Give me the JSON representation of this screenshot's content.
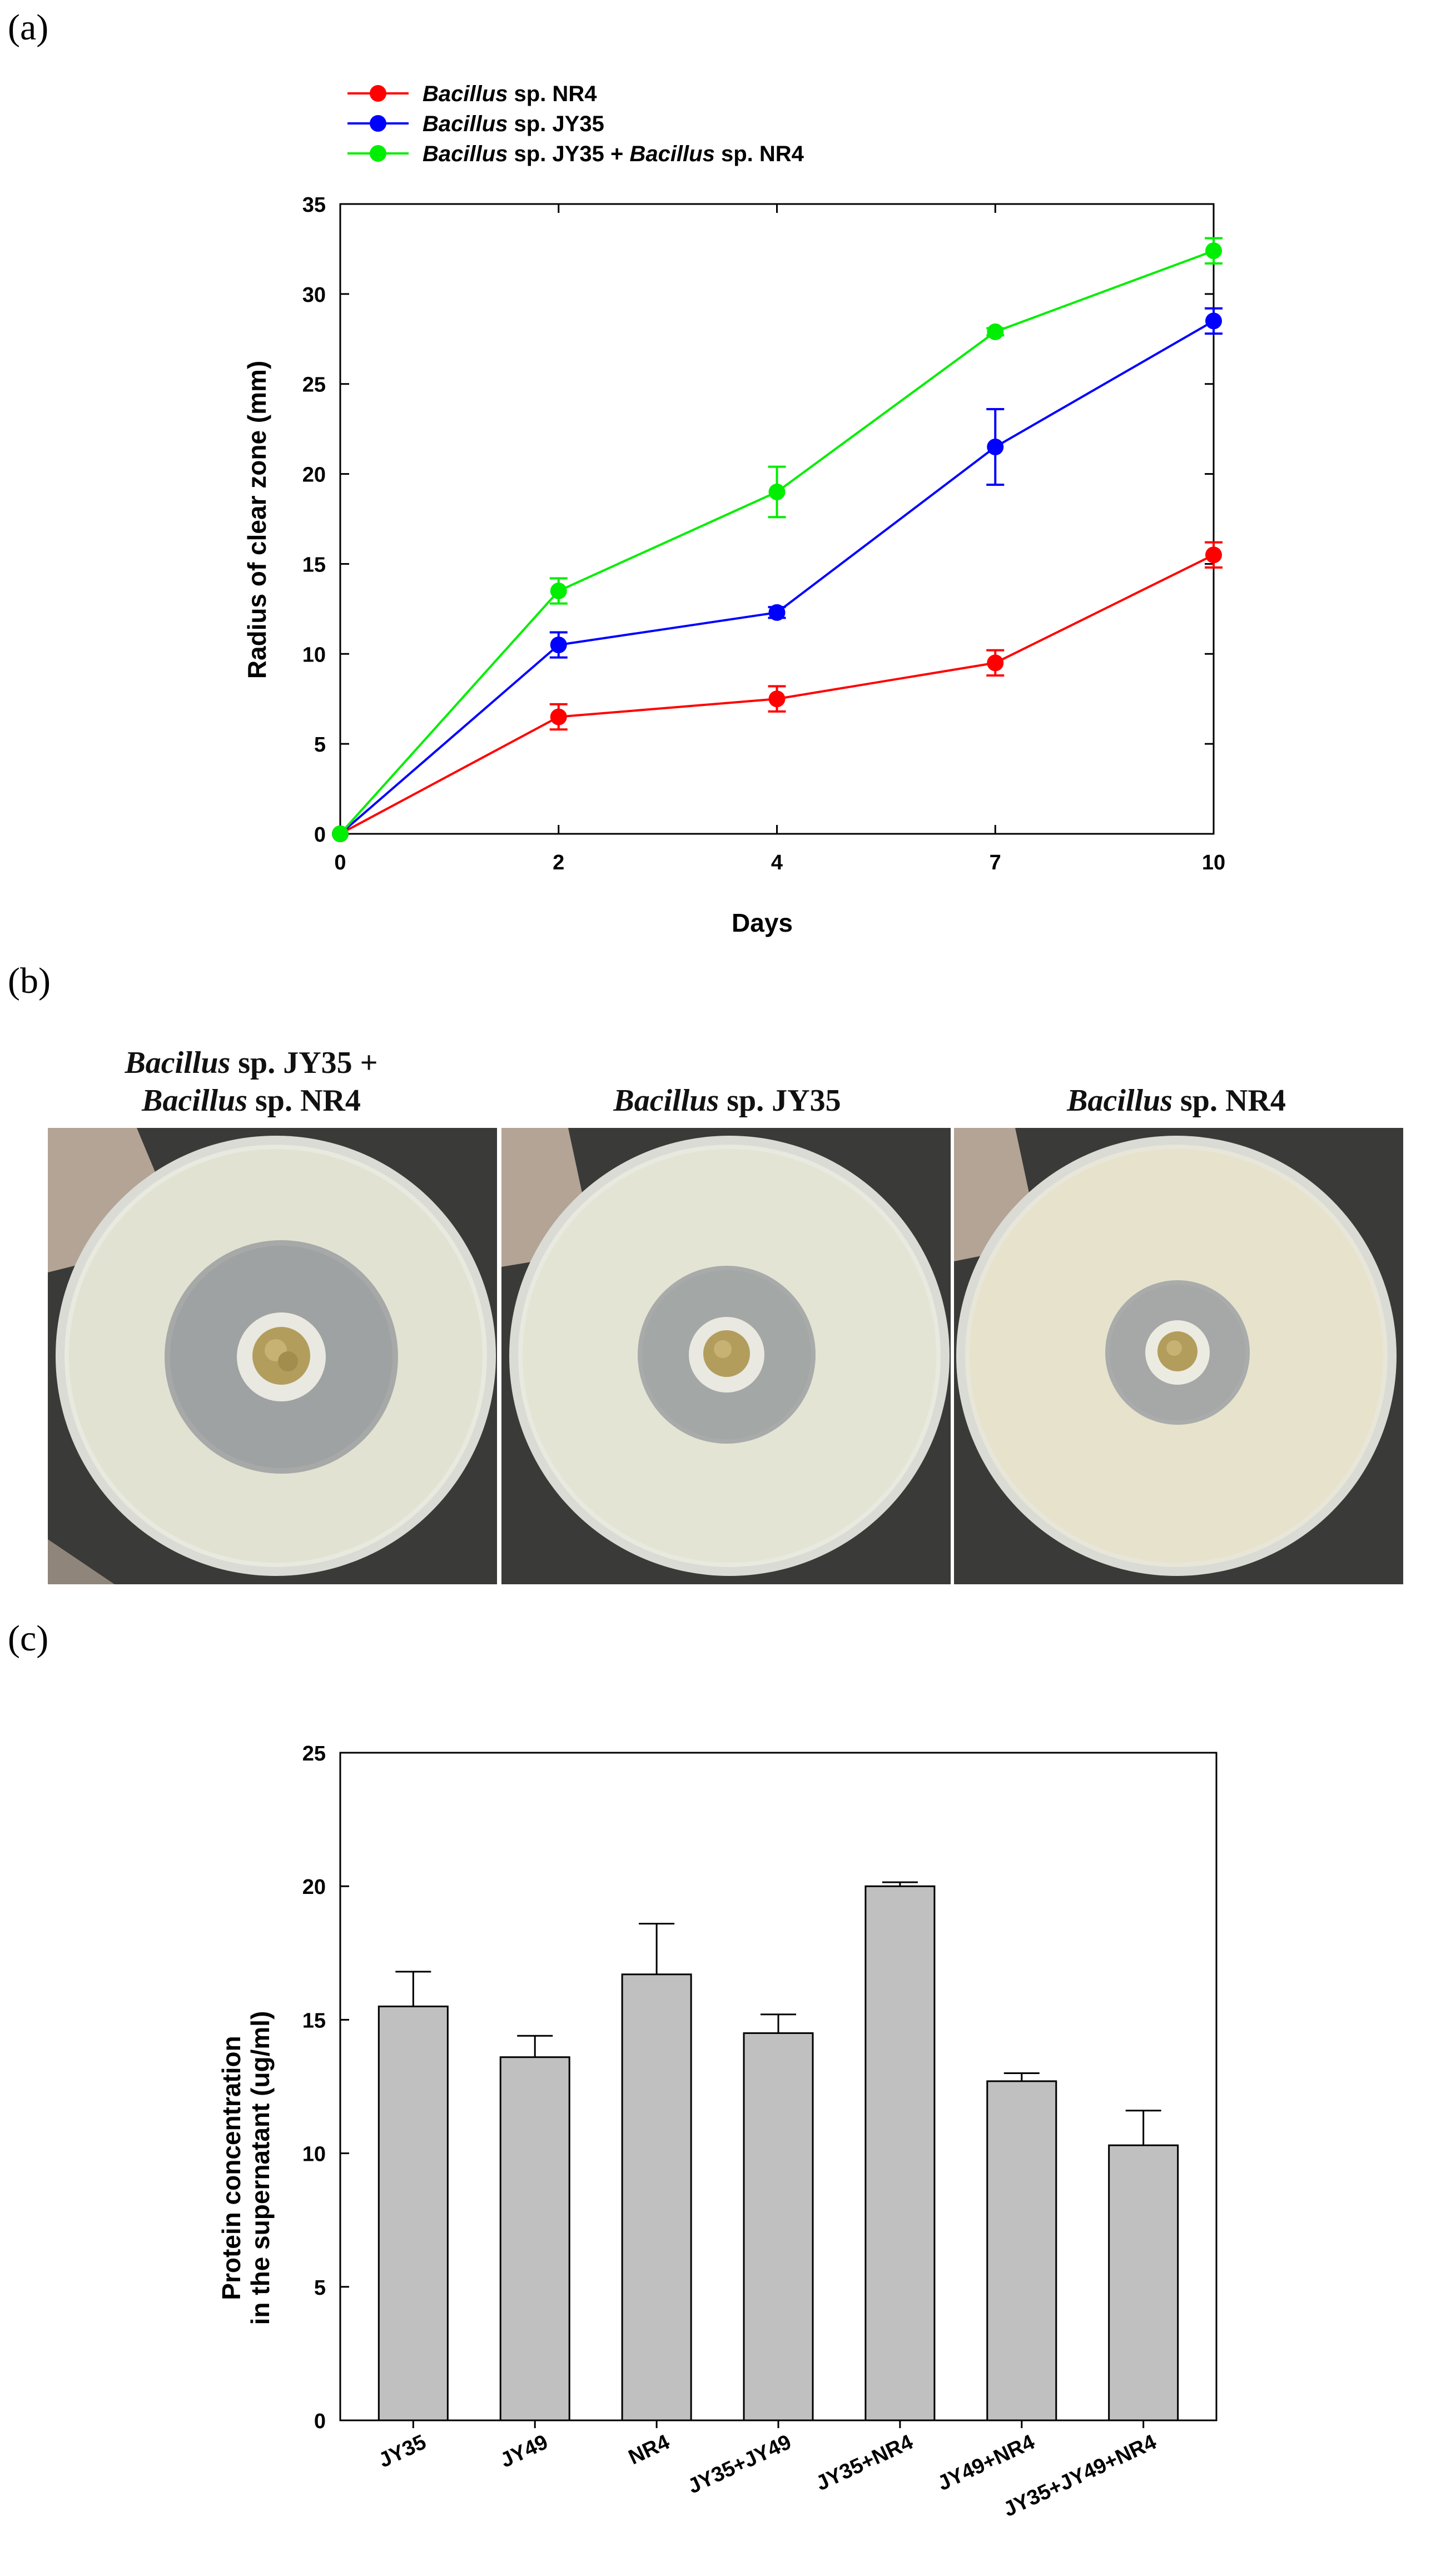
{
  "panels": {
    "a": {
      "label": "(a)"
    },
    "b": {
      "label": "(b)"
    },
    "c": {
      "label": "(c)"
    }
  },
  "colors": {
    "nr4": "#ff0000",
    "jy35": "#0000ff",
    "combo": "#00ee00",
    "bar_fill": "#c0c0c0"
  },
  "plates": [
    {
      "genus": "Bacillus",
      "rest": " sp. JY35 +",
      "genus2": "Bacillus",
      "rest2": " sp. NR4"
    },
    {
      "genus": "Bacillus",
      "rest": " sp. JY35"
    },
    {
      "genus": "Bacillus",
      "rest": " sp. NR4"
    }
  ],
  "chart_data": [
    {
      "type": "line",
      "title": "",
      "xlabel": "Days",
      "ylabel": "Radius of clear zone (mm)",
      "x": [
        0,
        2,
        4,
        7,
        10
      ],
      "x_tick_labels": [
        "0",
        "2",
        "4",
        "7",
        "10"
      ],
      "x_scale": "categorical-evenly-spaced",
      "ylim": [
        0,
        35
      ],
      "y_ticks": [
        0,
        5,
        10,
        15,
        20,
        25,
        30,
        35
      ],
      "legend_position": "top-left-above-plot",
      "series": [
        {
          "name": "NR4",
          "legend_italic": "Bacillus",
          "legend_rest": " sp. NR4",
          "color": "#ff0000",
          "values": [
            0,
            6.5,
            7.5,
            9.5,
            15.5
          ],
          "errors": [
            0,
            0.7,
            0.7,
            0.7,
            0.7
          ]
        },
        {
          "name": "JY35",
          "legend_italic": "Bacillus",
          "legend_rest": " sp. JY35",
          "color": "#0000ff",
          "values": [
            0,
            10.5,
            12.3,
            21.5,
            28.5
          ],
          "errors": [
            0,
            0.7,
            0.3,
            2.1,
            0.7
          ]
        },
        {
          "name": "JY35 + NR4",
          "legend_italic": "Bacillus",
          "legend_rest": " sp. JY35 + ",
          "legend_italic2": "Bacillus",
          "legend_rest2": " sp. NR4",
          "color": "#00ee00",
          "values": [
            0,
            13.5,
            19.0,
            27.9,
            32.4
          ],
          "errors": [
            0,
            0.7,
            1.4,
            0.2,
            0.7
          ]
        }
      ]
    },
    {
      "type": "bar",
      "title": "",
      "xlabel": "",
      "ylabel_line1": "Protein concentration",
      "ylabel_line2": "in the supernatant (ug/ml)",
      "categories": [
        "JY35",
        "JY49",
        "NR4",
        "JY35+JY49",
        "JY35+NR4",
        "JY49+NR4",
        "JY35+JY49+NR4"
      ],
      "values": [
        15.5,
        13.6,
        16.7,
        14.5,
        20.0,
        12.7,
        10.3
      ],
      "errors": [
        1.3,
        0.8,
        1.9,
        0.7,
        0.15,
        0.3,
        1.3
      ],
      "ylim": [
        0,
        25
      ],
      "y_ticks": [
        0,
        5,
        10,
        15,
        20,
        25
      ]
    }
  ]
}
